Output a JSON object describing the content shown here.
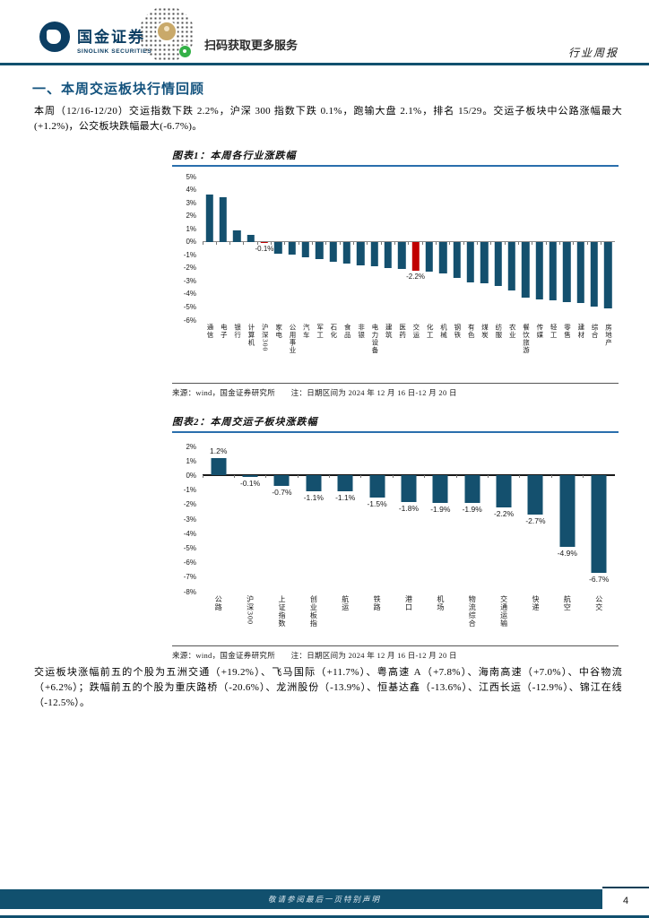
{
  "header": {
    "logo_title": "国金证券",
    "logo_subtitle": "SINOLINK SECURITIES",
    "qr_caption": "扫码获取更多服务",
    "report_type": "行业周报"
  },
  "section": {
    "title": "一、本周交运板块行情回顾",
    "paragraph1": "本周（12/16-12/20）交运指数下跌 2.2%，沪深 300 指数下跌 0.1%，跑输大盘 2.1%，排名 15/29。交运子板块中公路涨幅最大(+1.2%)，公交板块跌幅最大(-6.7%)。",
    "paragraph2": "交运板块涨幅前五的个股为五洲交通（+19.2%）、飞马国际（+11.7%）、粤高速 A（+7.8%）、海南高速（+7.0%）、中谷物流（+6.2%）；跌幅前五的个股为重庆路桥（-20.6%）、龙洲股份（-13.9%）、恒基达鑫（-13.6%）、江西长运（-12.9%）、锦江在线（-12.5%）。"
  },
  "chart_data": [
    {
      "type": "bar",
      "title": "图表1：本周各行业涨跌幅",
      "source_note": "来源：wind，国金证券研究所　　注：日期区间为 2024 年 12 月 16 日-12 月 20 日",
      "categories": [
        "通信",
        "电子",
        "银行",
        "计算机",
        "沪深300",
        "家电",
        "公用事业",
        "汽车",
        "军工",
        "石化",
        "食品",
        "非银",
        "电力设备",
        "建筑",
        "医药",
        "交运",
        "化工",
        "机械",
        "钢铁",
        "有色",
        "煤炭",
        "纺服",
        "农业",
        "餐饮旅游",
        "传媒",
        "轻工",
        "零售",
        "建材",
        "综合",
        "房地产"
      ],
      "values": [
        3.6,
        3.4,
        0.9,
        0.5,
        -0.1,
        -0.9,
        -1.0,
        -1.2,
        -1.3,
        -1.5,
        -1.7,
        -1.8,
        -1.9,
        -2.0,
        -2.1,
        -2.2,
        -2.3,
        -2.4,
        -2.8,
        -3.1,
        -3.2,
        -3.4,
        -3.7,
        -4.3,
        -4.4,
        -4.5,
        -4.6,
        -4.7,
        -5.0,
        -5.1
      ],
      "highlight_indices": [
        4,
        15
      ],
      "value_labels": {
        "4": "-0.1%",
        "15": "-2.2%"
      },
      "ylim": [
        -6,
        5
      ],
      "xlabel": "",
      "ylabel": "",
      "grid": false,
      "legend": false,
      "bar_color": "#14506e",
      "highlight_color": "#c00000"
    },
    {
      "type": "bar",
      "title": "图表2：本周交运子板块涨跌幅",
      "source_note": "来源：wind，国金证券研究所　　注：日期区间为 2024 年 12 月 16 日-12 月 20 日",
      "categories": [
        "公路",
        "沪深300",
        "上证指数",
        "创业板指",
        "航运",
        "铁路",
        "港口",
        "机场",
        "物流综合",
        "交通运输",
        "快递",
        "航空",
        "公交"
      ],
      "values": [
        1.2,
        -0.1,
        -0.7,
        -1.1,
        -1.1,
        -1.5,
        -1.8,
        -1.9,
        -1.9,
        -2.2,
        -2.7,
        -4.9,
        -6.7
      ],
      "highlight_indices": [],
      "value_labels": [
        "1.2%",
        "-0.1%",
        "-0.7%",
        "-1.1%",
        "-1.1%",
        "-1.5%",
        "-1.8%",
        "-1.9%",
        "-1.9%",
        "-2.2%",
        "-2.7%",
        "-4.9%",
        "-6.7%"
      ],
      "ylim": [
        -8,
        2
      ],
      "xlabel": "",
      "ylabel": "",
      "grid": false,
      "legend": false,
      "bar_color": "#14506e",
      "highlight_color": "#c00000"
    }
  ],
  "footer": {
    "disclaimer": "敬请参阅最后一页特别声明",
    "page_number": "4"
  },
  "colors": {
    "accent_dark_blue": "#11506e",
    "bar_blue": "#14506e",
    "highlight_red": "#c00000",
    "title_underline_blue": "#2a6fad",
    "heading_blue": "#14537e"
  }
}
